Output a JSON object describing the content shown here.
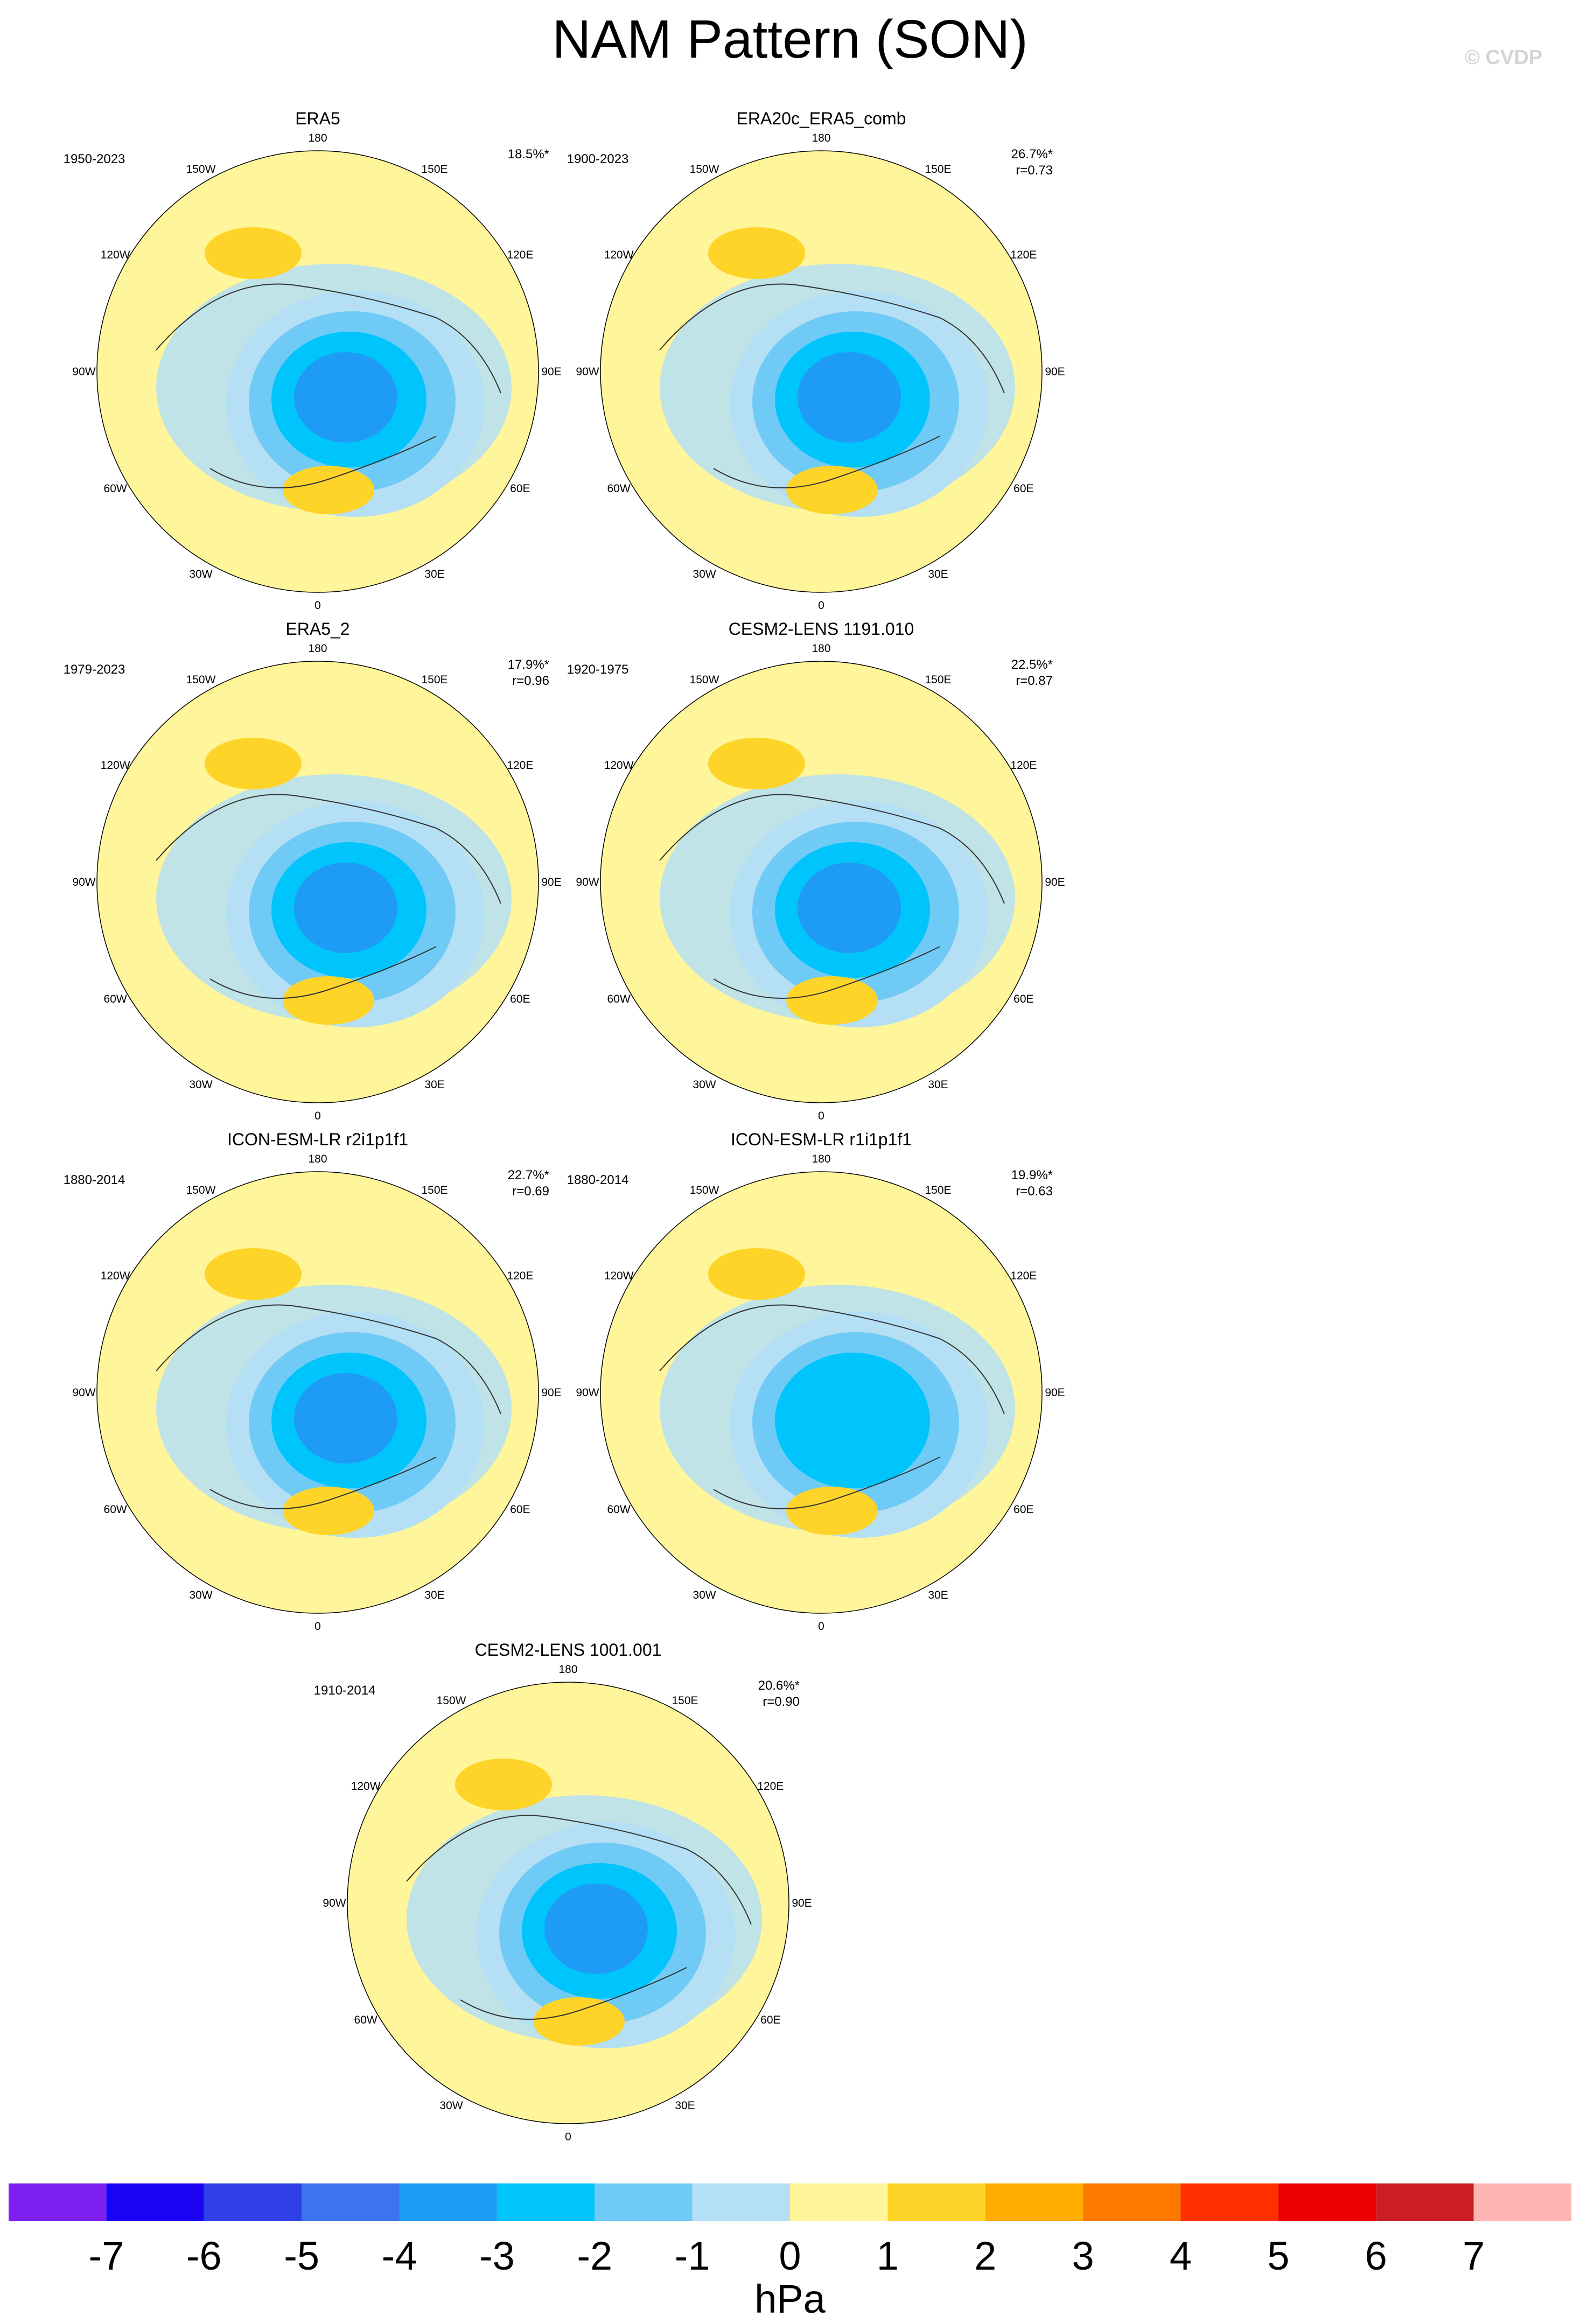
{
  "title": "NAM Pattern (SON)",
  "watermark": "© CVDP",
  "chart_data": {
    "type": "heatmap",
    "projection": "north polar stereographic",
    "variable_unit": "hPa",
    "longitude_labels": [
      "180",
      "150E",
      "120E",
      "90E",
      "60E",
      "30E",
      "0",
      "30W",
      "60W",
      "90W",
      "120W",
      "150W"
    ],
    "colorbar": {
      "labels": [
        "-7",
        "-6",
        "-5",
        "-4",
        "-3",
        "-2",
        "-1",
        "0",
        "1",
        "2",
        "3",
        "4",
        "5",
        "6",
        "7"
      ],
      "colors": [
        "#7d20f0",
        "#1a02f2",
        "#2f40e8",
        "#3b74ec",
        "#1e9bf5",
        "#00c5fc",
        "#6fcbf5",
        "#b4dff4",
        "#fff59a",
        "#ffd428",
        "#ffab00",
        "#ff7800",
        "#ff3000",
        "#eb0000",
        "#ca1e22",
        "#ffb4b4"
      ],
      "unit": "hPa"
    },
    "panels": [
      {
        "title": "ERA5",
        "period": "1950-2023",
        "explained_variance": "18.5%*",
        "pattern_correlation": "",
        "center_min": -4
      },
      {
        "title": "ERA20c_ERA5_comb",
        "period": "1900-2023",
        "explained_variance": "26.7%*",
        "pattern_correlation": "r=0.73",
        "center_min": -4
      },
      {
        "title": "ERA5_2",
        "period": "1979-2023",
        "explained_variance": "17.9%*",
        "pattern_correlation": "r=0.96",
        "center_min": -4
      },
      {
        "title": "CESM2-LENS 1191.010",
        "period": "1920-1975",
        "explained_variance": "22.5%*",
        "pattern_correlation": "r=0.87",
        "center_min": -4
      },
      {
        "title": "ICON-ESM-LR r2i1p1f1",
        "period": "1880-2014",
        "explained_variance": "22.7%*",
        "pattern_correlation": "r=0.69",
        "center_min": -4
      },
      {
        "title": "ICON-ESM-LR r1i1p1f1",
        "period": "1880-2014",
        "explained_variance": "19.9%*",
        "pattern_correlation": "r=0.63",
        "center_min": -3
      },
      {
        "title": "CESM2-LENS 1001.001",
        "period": "1910-2014",
        "explained_variance": "20.6%*",
        "pattern_correlation": "r=0.90",
        "center_min": -4
      }
    ]
  }
}
